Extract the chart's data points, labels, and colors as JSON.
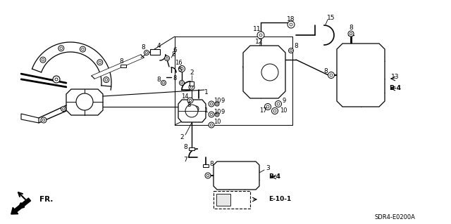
{
  "bg_color": "#ffffff",
  "fig_width": 6.4,
  "fig_height": 3.19,
  "dpi": 100,
  "sdr_label": "SDR4-E0200A",
  "fr_label": "FR."
}
